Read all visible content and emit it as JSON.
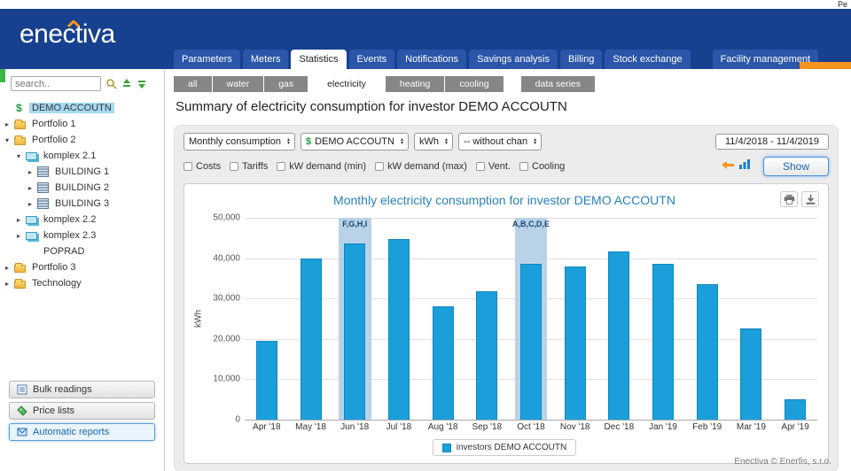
{
  "page": {
    "top_right_text": "Pe",
    "footer": "Enectiva © Enerfis, s.r.o."
  },
  "header": {
    "logo": "enectiva",
    "nav_tabs": [
      {
        "label": "Parameters",
        "active": false
      },
      {
        "label": "Meters",
        "active": false
      },
      {
        "label": "Statistics",
        "active": true
      },
      {
        "label": "Events",
        "active": false
      },
      {
        "label": "Notifications",
        "active": false
      },
      {
        "label": "Savings analysis",
        "active": false
      },
      {
        "label": "Billing",
        "active": false
      },
      {
        "label": "Stock exchange",
        "active": false
      },
      {
        "label": "Facility management",
        "active": false,
        "separate": true
      }
    ]
  },
  "sidebar": {
    "search_placeholder": "search..",
    "tree": [
      {
        "label": "DEMO ACCOUTN",
        "level": 0,
        "icon": "dollar",
        "selected": true
      },
      {
        "label": "Portfolio 1",
        "level": 0,
        "icon": "folder",
        "arrow": "collapsed"
      },
      {
        "label": "Portfolio 2",
        "level": 0,
        "icon": "folder",
        "arrow": "expanded"
      },
      {
        "label": "komplex 2.1",
        "level": 1,
        "icon": "complex",
        "arrow": "expanded"
      },
      {
        "label": "BUILDING 1",
        "level": 2,
        "icon": "building",
        "arrow": "collapsed"
      },
      {
        "label": "BUILDING 2",
        "level": 2,
        "icon": "building",
        "arrow": "collapsed"
      },
      {
        "label": "BUILDING 3",
        "level": 2,
        "icon": "building",
        "arrow": "collapsed"
      },
      {
        "label": "komplex 2.2",
        "level": 1,
        "icon": "complex",
        "arrow": "collapsed"
      },
      {
        "label": "komplex 2.3",
        "level": 1,
        "icon": "complex",
        "arrow": "collapsed"
      },
      {
        "label": "POPRAD",
        "level": 1,
        "icon": "none"
      },
      {
        "label": "Portfolio 3",
        "level": 0,
        "icon": "folder",
        "arrow": "collapsed"
      },
      {
        "label": "Technology",
        "level": 0,
        "icon": "folder",
        "arrow": "collapsed"
      }
    ],
    "buttons": [
      {
        "label": "Bulk readings",
        "icon": "bulk-readings",
        "active": false
      },
      {
        "label": "Price lists",
        "icon": "price-lists",
        "active": false
      },
      {
        "label": "Automatic reports",
        "icon": "automatic-reports",
        "active": true
      }
    ]
  },
  "filters": {
    "groups": [
      [
        {
          "label": "all"
        },
        {
          "label": "water"
        },
        {
          "label": "gas"
        }
      ],
      [
        {
          "label": "electricity",
          "active": true
        }
      ],
      [
        {
          "label": "heating"
        },
        {
          "label": "cooling"
        }
      ],
      [
        {
          "label": "data series"
        }
      ]
    ]
  },
  "main": {
    "heading": "Summary of electricity consumption for investor DEMO ACCOUTN",
    "controls": {
      "selects": [
        {
          "name": "period-select",
          "value": "Monthly consumption"
        },
        {
          "name": "account-select",
          "value": "DEMO ACCOUTN",
          "icon": "dollar"
        },
        {
          "name": "unit-select",
          "value": "kWh"
        },
        {
          "name": "change-select",
          "value": "-- without chan"
        }
      ],
      "date_range": "11/4/2018 - 11/4/2019",
      "checkboxes": [
        "Costs",
        "Tariffs",
        "kW demand (min)",
        "kW demand (max)",
        "Vent.",
        "Cooling"
      ],
      "show_label": "Show"
    }
  },
  "chart_data": {
    "type": "bar",
    "title": "Monthly electricity consumption for investor DEMO ACCOUTN",
    "xlabel": "",
    "ylabel": "kWh",
    "ylim": [
      0,
      50000
    ],
    "ytick_step": 10000,
    "yticks": [
      "0",
      "10,000",
      "20,000",
      "30,000",
      "40,000",
      "50,000"
    ],
    "grid": true,
    "categories": [
      "Apr '18",
      "May '18",
      "Jun '18",
      "Jul '18",
      "Aug '18",
      "Sep '18",
      "Oct '18",
      "Nov '18",
      "Dec '18",
      "Jan '19",
      "Feb '19",
      "Mar '19",
      "Apr '19"
    ],
    "values": [
      19500,
      40000,
      43700,
      44700,
      28000,
      31800,
      38700,
      38000,
      41700,
      38500,
      33500,
      22700,
      5000
    ],
    "highlights": [
      {
        "index": 2,
        "label": "F,G,H,I"
      },
      {
        "index": 6,
        "label": "A,B,C,D,E"
      }
    ],
    "bar_color": "#1a9fdb",
    "legend_position": "bottom",
    "legend": [
      {
        "label": "investors DEMO ACCOUTN",
        "color": "#1a9fdb"
      }
    ]
  },
  "colors": {
    "header_blue": "#17418f",
    "accent_orange": "#f7941d",
    "bar_blue": "#1a9fdb",
    "highlight_band": "#b9d2e8",
    "title_blue": "#2980b9"
  }
}
